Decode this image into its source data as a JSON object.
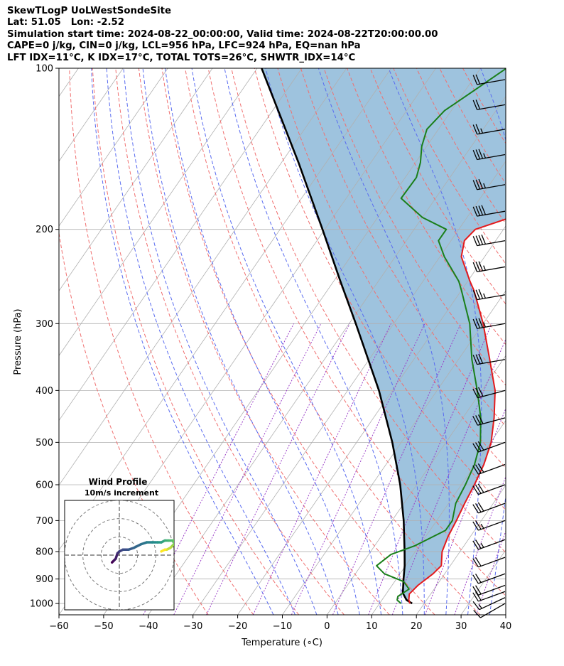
{
  "header": {
    "lines": [
      "SkewTLogP UoLWestSondeSite",
      "Lat: 51.05   Lon: -2.52",
      "Simulation start time: 2024-08-22_00:00:00, Valid time: 2024-08-22T20:00:00.00",
      "CAPE=0 j/kg, CIN=0 j/kg, LCL=956 hPa, LFC=924 hPa, EQ=nan hPa",
      "LFT IDX=11°C, K IDX=17°C, TOTAL TOTS=26°C, SHWTR_IDX=14°C"
    ]
  },
  "colors": {
    "temperature": "#e41a1c",
    "dewpoint": "#1a7f1a",
    "parcel": "#000000",
    "shade": "#9ec3de",
    "dry_adiabat": "#f07070",
    "moist_adiabat": "#5a6cf0",
    "mixing_ratio": "#9b3fc8",
    "isotherm": "#b0b0b0",
    "grid": "#b0b0b0"
  },
  "chart_data": {
    "type": "skewt",
    "xlabel": "Temperature (∘C)",
    "ylabel": "Pressure (hPa)",
    "xlim": [
      -60,
      40
    ],
    "ylim": [
      1050,
      100
    ],
    "x_ticks": [
      -60,
      -50,
      -40,
      -30,
      -20,
      -10,
      0,
      10,
      20,
      30,
      40
    ],
    "y_ticks": [
      1000,
      900,
      800,
      700,
      600,
      500,
      400,
      300,
      200,
      100
    ],
    "log_y": true,
    "grid": true,
    "temperature": [
      [
        1000,
        16.8
      ],
      [
        985,
        16.0
      ],
      [
        960,
        15.2
      ],
      [
        925,
        15.8
      ],
      [
        880,
        17.4
      ],
      [
        850,
        18.0
      ],
      [
        800,
        16.0
      ],
      [
        750,
        15.0
      ],
      [
        700,
        14.4
      ],
      [
        650,
        13.6
      ],
      [
        600,
        12.9
      ],
      [
        550,
        11.9
      ],
      [
        500,
        10.1
      ],
      [
        450,
        7.0
      ],
      [
        400,
        3.0
      ],
      [
        350,
        -3.0
      ],
      [
        300,
        -10.0
      ],
      [
        260,
        -17.2
      ],
      [
        250,
        -19.5
      ],
      [
        225,
        -25.2
      ],
      [
        210,
        -27.0
      ],
      [
        200,
        -26.3
      ],
      [
        190,
        -20.2
      ],
      [
        175,
        -18.4
      ],
      [
        160,
        -17.3
      ],
      [
        150,
        -16.2
      ],
      [
        140,
        -15.9
      ],
      [
        130,
        -13.2
      ],
      [
        120,
        -9.0
      ],
      [
        110,
        -4.0
      ],
      [
        100,
        1.0
      ]
    ],
    "dewpoint": [
      [
        1000,
        14.8
      ],
      [
        985,
        13.4
      ],
      [
        970,
        13.0
      ],
      [
        940,
        14.4
      ],
      [
        910,
        12.0
      ],
      [
        880,
        6.5
      ],
      [
        850,
        3.5
      ],
      [
        810,
        5.0
      ],
      [
        780,
        9.0
      ],
      [
        730,
        13.5
      ],
      [
        700,
        13.5
      ],
      [
        650,
        11.6
      ],
      [
        600,
        10.9
      ],
      [
        550,
        9.8
      ],
      [
        500,
        7.7
      ],
      [
        450,
        4.0
      ],
      [
        400,
        -1.0
      ],
      [
        350,
        -7.0
      ],
      [
        300,
        -13.0
      ],
      [
        260,
        -20.0
      ],
      [
        250,
        -22.0
      ],
      [
        225,
        -29.0
      ],
      [
        210,
        -32.8
      ],
      [
        200,
        -32.8
      ],
      [
        190,
        -40.0
      ],
      [
        175,
        -47.7
      ],
      [
        160,
        -47.5
      ],
      [
        150,
        -48.9
      ],
      [
        140,
        -51.1
      ],
      [
        130,
        -52.6
      ],
      [
        120,
        -51.5
      ],
      [
        110,
        -48.0
      ],
      [
        100,
        -44.2
      ]
    ],
    "parcel": [
      [
        1000,
        17.3
      ],
      [
        985,
        15.5
      ],
      [
        956,
        13.6
      ],
      [
        900,
        11.6
      ],
      [
        850,
        9.8
      ],
      [
        800,
        7.6
      ],
      [
        700,
        2.6
      ],
      [
        600,
        -3.7
      ],
      [
        500,
        -12.0
      ],
      [
        400,
        -23.0
      ],
      [
        300,
        -38.5
      ],
      [
        250,
        -48.5
      ],
      [
        200,
        -60.5
      ],
      [
        150,
        -76.2
      ],
      [
        100,
        -99.0
      ]
    ],
    "dry_adiabats_theta_c": [
      -30,
      -20,
      -10,
      0,
      10,
      20,
      30,
      40,
      50,
      60,
      70,
      80,
      90,
      100,
      110,
      120,
      130,
      140,
      150
    ],
    "moist_adiabats_start_c": [
      -15,
      -10,
      -5,
      0,
      5,
      10,
      15,
      20,
      25,
      30,
      35
    ],
    "mixing_ratios_gkg": [
      0.1,
      0.2,
      0.4,
      1.0,
      2.0,
      4.0,
      7.0,
      10.0,
      16.0,
      24.0,
      32.0
    ],
    "wind_barbs": [
      {
        "p": 1000,
        "speed_kt": 10,
        "dir_deg": 240
      },
      {
        "p": 975,
        "speed_kt": 15,
        "dir_deg": 245
      },
      {
        "p": 950,
        "speed_kt": 20,
        "dir_deg": 250
      },
      {
        "p": 925,
        "speed_kt": 20,
        "dir_deg": 250
      },
      {
        "p": 880,
        "speed_kt": 20,
        "dir_deg": 250
      },
      {
        "p": 820,
        "speed_kt": 20,
        "dir_deg": 250
      },
      {
        "p": 760,
        "speed_kt": 25,
        "dir_deg": 250
      },
      {
        "p": 700,
        "speed_kt": 25,
        "dir_deg": 250
      },
      {
        "p": 650,
        "speed_kt": 30,
        "dir_deg": 250
      },
      {
        "p": 600,
        "speed_kt": 30,
        "dir_deg": 250
      },
      {
        "p": 550,
        "speed_kt": 30,
        "dir_deg": 250
      },
      {
        "p": 500,
        "speed_kt": 30,
        "dir_deg": 250
      },
      {
        "p": 450,
        "speed_kt": 30,
        "dir_deg": 255
      },
      {
        "p": 400,
        "speed_kt": 30,
        "dir_deg": 255
      },
      {
        "p": 350,
        "speed_kt": 30,
        "dir_deg": 260
      },
      {
        "p": 300,
        "speed_kt": 35,
        "dir_deg": 260
      },
      {
        "p": 265,
        "speed_kt": 35,
        "dir_deg": 260
      },
      {
        "p": 235,
        "speed_kt": 35,
        "dir_deg": 260
      },
      {
        "p": 210,
        "speed_kt": 40,
        "dir_deg": 260
      },
      {
        "p": 185,
        "speed_kt": 40,
        "dir_deg": 260
      },
      {
        "p": 165,
        "speed_kt": 35,
        "dir_deg": 260
      },
      {
        "p": 145,
        "speed_kt": 35,
        "dir_deg": 260
      },
      {
        "p": 130,
        "speed_kt": 25,
        "dir_deg": 260
      },
      {
        "p": 117,
        "speed_kt": 20,
        "dir_deg": 260
      },
      {
        "p": 105,
        "speed_kt": 20,
        "dir_deg": 260
      }
    ],
    "hodograph": {
      "title": "Wind Profile",
      "subtitle": "10m/s increment",
      "range_ms": [
        -30,
        30
      ],
      "rings_ms": [
        10,
        20,
        30
      ],
      "points": [
        [
          -4,
          -4
        ],
        [
          -3,
          -3
        ],
        [
          -2,
          -2
        ],
        [
          -1,
          1
        ],
        [
          0,
          2
        ],
        [
          2,
          3
        ],
        [
          5,
          3
        ],
        [
          8,
          4
        ],
        [
          12,
          6
        ],
        [
          15,
          7
        ],
        [
          18,
          7
        ],
        [
          21,
          7
        ],
        [
          23,
          7
        ],
        [
          25,
          8
        ],
        [
          27,
          8
        ],
        [
          29,
          8
        ],
        [
          30,
          8
        ],
        [
          30,
          6
        ],
        [
          29,
          5
        ],
        [
          28,
          4
        ],
        [
          26,
          3
        ],
        [
          25,
          3
        ],
        [
          23,
          2
        ]
      ]
    }
  }
}
